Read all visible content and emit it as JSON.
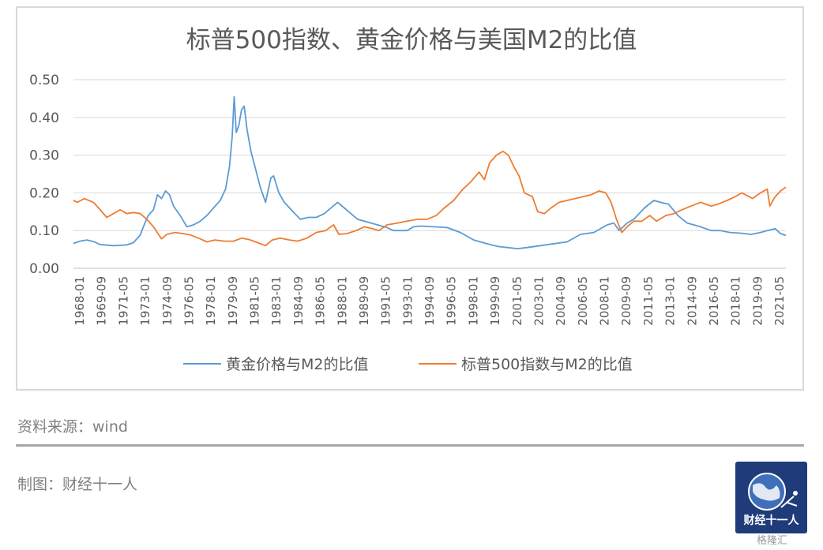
{
  "header": {
    "title": "标普500指数、黄金价格与美国M2的比值"
  },
  "footer": {
    "source": "资料来源：wind",
    "maker": "制图：财经十一人",
    "logo_text": "财经十一人",
    "watermark": "格隆汇"
  },
  "colors": {
    "gold_series": "#5b9bd5",
    "sp500_series": "#ed7d31",
    "grid": "#d9d9d9",
    "axis_text": "#595959"
  },
  "chart_data": {
    "type": "line",
    "title": "标普500指数、黄金价格与美国M2的比值",
    "ylim": [
      0,
      0.5
    ],
    "y_ticks": [
      "0.00",
      "0.10",
      "0.20",
      "0.30",
      "0.40",
      "0.50"
    ],
    "x_range": [
      1968.0,
      2021.4
    ],
    "x_tick_labels": [
      "1968-01",
      "1969-09",
      "1971-05",
      "1973-01",
      "1974-09",
      "1976-05",
      "1978-01",
      "1979-09",
      "1981-05",
      "1983-01",
      "1984-09",
      "1986-05",
      "1988-01",
      "1989-09",
      "1991-05",
      "1993-01",
      "1994-09",
      "1996-05",
      "1998-01",
      "1999-09",
      "2001-05",
      "2003-01",
      "2004-09",
      "2006-05",
      "2008-01",
      "2009-09",
      "2011-05",
      "2013-01",
      "2014-09",
      "2016-05",
      "2018-01",
      "2019-09",
      "2021-05"
    ],
    "grid": true,
    "legend_position": "bottom",
    "series": [
      {
        "name": "黄金价格与M2的比值",
        "color": "#5b9bd5",
        "points": [
          [
            1968.0,
            0.066
          ],
          [
            1968.5,
            0.072
          ],
          [
            1969.0,
            0.075
          ],
          [
            1969.5,
            0.071
          ],
          [
            1970.0,
            0.063
          ],
          [
            1971.0,
            0.06
          ],
          [
            1972.0,
            0.062
          ],
          [
            1972.5,
            0.068
          ],
          [
            1973.0,
            0.088
          ],
          [
            1973.3,
            0.115
          ],
          [
            1973.6,
            0.14
          ],
          [
            1974.0,
            0.155
          ],
          [
            1974.3,
            0.195
          ],
          [
            1974.6,
            0.185
          ],
          [
            1974.9,
            0.205
          ],
          [
            1975.2,
            0.195
          ],
          [
            1975.5,
            0.165
          ],
          [
            1976.0,
            0.14
          ],
          [
            1976.5,
            0.11
          ],
          [
            1977.0,
            0.115
          ],
          [
            1977.5,
            0.125
          ],
          [
            1978.0,
            0.14
          ],
          [
            1978.5,
            0.16
          ],
          [
            1979.0,
            0.18
          ],
          [
            1979.4,
            0.21
          ],
          [
            1979.7,
            0.27
          ],
          [
            1979.9,
            0.35
          ],
          [
            1980.05,
            0.455
          ],
          [
            1980.2,
            0.36
          ],
          [
            1980.4,
            0.38
          ],
          [
            1980.6,
            0.42
          ],
          [
            1980.8,
            0.43
          ],
          [
            1981.0,
            0.37
          ],
          [
            1981.3,
            0.31
          ],
          [
            1981.6,
            0.27
          ],
          [
            1982.0,
            0.215
          ],
          [
            1982.4,
            0.175
          ],
          [
            1982.8,
            0.24
          ],
          [
            1983.0,
            0.245
          ],
          [
            1983.4,
            0.2
          ],
          [
            1983.8,
            0.175
          ],
          [
            1984.2,
            0.16
          ],
          [
            1984.6,
            0.145
          ],
          [
            1985.0,
            0.13
          ],
          [
            1985.6,
            0.135
          ],
          [
            1986.2,
            0.135
          ],
          [
            1986.8,
            0.145
          ],
          [
            1987.3,
            0.16
          ],
          [
            1987.8,
            0.175
          ],
          [
            1988.3,
            0.16
          ],
          [
            1988.8,
            0.145
          ],
          [
            1989.3,
            0.13
          ],
          [
            1989.8,
            0.125
          ],
          [
            1990.3,
            0.12
          ],
          [
            1990.8,
            0.115
          ],
          [
            1991.5,
            0.108
          ],
          [
            1992.0,
            0.1
          ],
          [
            1993.0,
            0.1
          ],
          [
            1993.5,
            0.11
          ],
          [
            1994.0,
            0.112
          ],
          [
            1995.0,
            0.11
          ],
          [
            1996.0,
            0.108
          ],
          [
            1997.0,
            0.095
          ],
          [
            1997.5,
            0.085
          ],
          [
            1998.0,
            0.075
          ],
          [
            1999.0,
            0.065
          ],
          [
            1999.8,
            0.058
          ],
          [
            2000.5,
            0.055
          ],
          [
            2001.3,
            0.052
          ],
          [
            2002.0,
            0.055
          ],
          [
            2003.0,
            0.06
          ],
          [
            2004.0,
            0.065
          ],
          [
            2005.0,
            0.07
          ],
          [
            2006.0,
            0.09
          ],
          [
            2007.0,
            0.095
          ],
          [
            2008.0,
            0.115
          ],
          [
            2008.5,
            0.12
          ],
          [
            2008.9,
            0.1
          ],
          [
            2009.5,
            0.12
          ],
          [
            2010.0,
            0.13
          ],
          [
            2010.8,
            0.16
          ],
          [
            2011.5,
            0.18
          ],
          [
            2012.0,
            0.175
          ],
          [
            2012.6,
            0.17
          ],
          [
            2013.3,
            0.14
          ],
          [
            2014.0,
            0.12
          ],
          [
            2015.0,
            0.11
          ],
          [
            2015.8,
            0.1
          ],
          [
            2016.5,
            0.1
          ],
          [
            2017.2,
            0.095
          ],
          [
            2018.0,
            0.093
          ],
          [
            2018.8,
            0.09
          ],
          [
            2019.5,
            0.095
          ],
          [
            2020.0,
            0.1
          ],
          [
            2020.6,
            0.105
          ],
          [
            2021.0,
            0.092
          ],
          [
            2021.4,
            0.087
          ]
        ]
      },
      {
        "name": "标普500指数与M2的比值",
        "color": "#ed7d31",
        "points": [
          [
            1968.0,
            0.18
          ],
          [
            1968.3,
            0.175
          ],
          [
            1968.8,
            0.185
          ],
          [
            1969.5,
            0.175
          ],
          [
            1970.0,
            0.155
          ],
          [
            1970.5,
            0.135
          ],
          [
            1971.0,
            0.145
          ],
          [
            1971.5,
            0.155
          ],
          [
            1972.0,
            0.145
          ],
          [
            1972.5,
            0.148
          ],
          [
            1973.0,
            0.145
          ],
          [
            1973.5,
            0.13
          ],
          [
            1974.0,
            0.11
          ],
          [
            1974.6,
            0.078
          ],
          [
            1975.0,
            0.09
          ],
          [
            1975.6,
            0.095
          ],
          [
            1976.2,
            0.092
          ],
          [
            1976.8,
            0.088
          ],
          [
            1977.5,
            0.078
          ],
          [
            1978.0,
            0.07
          ],
          [
            1978.6,
            0.075
          ],
          [
            1979.3,
            0.072
          ],
          [
            1980.0,
            0.072
          ],
          [
            1980.6,
            0.08
          ],
          [
            1981.2,
            0.076
          ],
          [
            1981.8,
            0.068
          ],
          [
            1982.4,
            0.06
          ],
          [
            1982.9,
            0.075
          ],
          [
            1983.5,
            0.08
          ],
          [
            1984.2,
            0.075
          ],
          [
            1984.8,
            0.072
          ],
          [
            1985.5,
            0.08
          ],
          [
            1986.2,
            0.095
          ],
          [
            1986.9,
            0.1
          ],
          [
            1987.5,
            0.115
          ],
          [
            1987.9,
            0.09
          ],
          [
            1988.5,
            0.092
          ],
          [
            1989.2,
            0.1
          ],
          [
            1989.8,
            0.11
          ],
          [
            1990.4,
            0.105
          ],
          [
            1990.9,
            0.1
          ],
          [
            1991.5,
            0.115
          ],
          [
            1992.3,
            0.12
          ],
          [
            1993.0,
            0.125
          ],
          [
            1993.8,
            0.13
          ],
          [
            1994.5,
            0.13
          ],
          [
            1995.2,
            0.14
          ],
          [
            1995.8,
            0.16
          ],
          [
            1996.5,
            0.18
          ],
          [
            1997.2,
            0.21
          ],
          [
            1997.8,
            0.23
          ],
          [
            1998.4,
            0.255
          ],
          [
            1998.8,
            0.235
          ],
          [
            1999.2,
            0.28
          ],
          [
            1999.7,
            0.3
          ],
          [
            2000.2,
            0.31
          ],
          [
            2000.6,
            0.3
          ],
          [
            2001.0,
            0.27
          ],
          [
            2001.4,
            0.245
          ],
          [
            2001.8,
            0.2
          ],
          [
            2002.4,
            0.19
          ],
          [
            2002.8,
            0.15
          ],
          [
            2003.3,
            0.145
          ],
          [
            2003.8,
            0.16
          ],
          [
            2004.4,
            0.175
          ],
          [
            2005.0,
            0.18
          ],
          [
            2005.6,
            0.185
          ],
          [
            2006.2,
            0.19
          ],
          [
            2006.8,
            0.195
          ],
          [
            2007.4,
            0.205
          ],
          [
            2007.9,
            0.2
          ],
          [
            2008.3,
            0.175
          ],
          [
            2008.7,
            0.13
          ],
          [
            2009.1,
            0.095
          ],
          [
            2009.5,
            0.11
          ],
          [
            2010.0,
            0.125
          ],
          [
            2010.6,
            0.125
          ],
          [
            2011.2,
            0.14
          ],
          [
            2011.7,
            0.125
          ],
          [
            2012.4,
            0.14
          ],
          [
            2013.0,
            0.145
          ],
          [
            2013.6,
            0.155
          ],
          [
            2014.3,
            0.165
          ],
          [
            2015.0,
            0.175
          ],
          [
            2015.8,
            0.165
          ],
          [
            2016.3,
            0.17
          ],
          [
            2017.0,
            0.18
          ],
          [
            2017.6,
            0.19
          ],
          [
            2018.1,
            0.2
          ],
          [
            2018.9,
            0.185
          ],
          [
            2019.5,
            0.2
          ],
          [
            2020.0,
            0.21
          ],
          [
            2020.2,
            0.165
          ],
          [
            2020.6,
            0.19
          ],
          [
            2021.0,
            0.205
          ],
          [
            2021.4,
            0.215
          ]
        ]
      }
    ]
  }
}
